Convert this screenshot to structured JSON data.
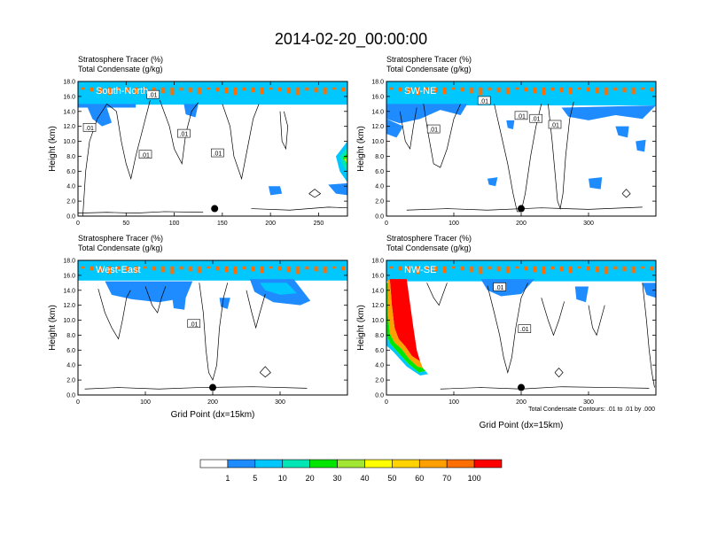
{
  "figure": {
    "title": "2014-02-20_00:00:00",
    "footnote": "Total Condensate Contours: .01 to .01 by .000"
  },
  "colorbar": {
    "labels": [
      "1",
      "5",
      "10",
      "20",
      "30",
      "40",
      "50",
      "60",
      "70",
      "100"
    ],
    "colors": [
      "#ffffff",
      "#1e8cff",
      "#00c8ff",
      "#00e6b4",
      "#00e600",
      "#a0e632",
      "#ffff00",
      "#ffd200",
      "#ffa000",
      "#ff6e00",
      "#ff0000"
    ]
  },
  "chart_data": [
    {
      "type": "heatmap",
      "title_line1": "Stratosphere Tracer   (%)",
      "title_line2": "Total Condensate   (g/kg)",
      "panel_label": "South-North",
      "ylabel": "Height (km)",
      "xlabel": "",
      "xlim": [
        0,
        280
      ],
      "ylim": [
        0,
        18
      ],
      "xticks": [
        "0",
        "50",
        "100",
        "150",
        "200",
        "250"
      ],
      "yticks": [
        "0.0",
        "2.0",
        "4.0",
        "6.0",
        "8.0",
        "10.0",
        "12.0",
        "14.0",
        "16.0",
        "18.0"
      ],
      "contour_labels": [
        {
          "text": ".01",
          "x": 78,
          "y": 16.2
        },
        {
          "text": ".01",
          "x": 12,
          "y": 11.8
        },
        {
          "text": ".01",
          "x": 110,
          "y": 11.0
        },
        {
          "text": ".01",
          "x": 70,
          "y": 8.2
        },
        {
          "text": ".01",
          "x": 145,
          "y": 8.4
        }
      ],
      "marker": {
        "x": 142,
        "y": 1.0
      }
    },
    {
      "type": "heatmap",
      "title_line1": "Stratosphere Tracer   (%)",
      "title_line2": "Total Condensate   (g/kg)",
      "panel_label": "SW-NE",
      "ylabel": "Height (km)",
      "xlabel": "",
      "xlim": [
        0,
        400
      ],
      "ylim": [
        0,
        18
      ],
      "xticks": [
        "0",
        "100",
        "200",
        "300"
      ],
      "yticks": [
        "0.0",
        "2.0",
        "4.0",
        "6.0",
        "8.0",
        "10.0",
        "12.0",
        "14.0",
        "16.0",
        "18.0"
      ],
      "contour_labels": [
        {
          "text": ".01",
          "x": 145,
          "y": 15.4
        },
        {
          "text": ".01",
          "x": 200,
          "y": 13.4
        },
        {
          "text": ".01",
          "x": 222,
          "y": 13.0
        },
        {
          "text": ".01",
          "x": 70,
          "y": 11.6
        },
        {
          "text": ".01",
          "x": 250,
          "y": 12.2
        }
      ],
      "marker": {
        "x": 200,
        "y": 1.0
      }
    },
    {
      "type": "heatmap",
      "title_line1": "Stratosphere Tracer   (%)",
      "title_line2": "Total Condensate   (g/kg)",
      "panel_label": "West-East",
      "ylabel": "Height (km)",
      "xlabel": "Grid Point (dx=15km)",
      "xlim": [
        0,
        400
      ],
      "ylim": [
        0,
        18
      ],
      "xticks": [
        "0",
        "100",
        "200",
        "300"
      ],
      "yticks": [
        "0.0",
        "2.0",
        "4.0",
        "6.0",
        "8.0",
        "10.0",
        "12.0",
        "14.0",
        "16.0",
        "18.0"
      ],
      "contour_labels": [
        {
          "text": ".01",
          "x": 172,
          "y": 9.5
        }
      ],
      "marker": {
        "x": 200,
        "y": 1.0
      }
    },
    {
      "type": "heatmap",
      "title_line1": "Stratosphere Tracer   (%)",
      "title_line2": "Total Condensate   (g/kg)",
      "panel_label": "NW-SE",
      "ylabel": "Height (km)",
      "xlabel": "Grid Point (dx=15km)",
      "xlim": [
        0,
        400
      ],
      "ylim": [
        0,
        18
      ],
      "xticks": [
        "0",
        "100",
        "200",
        "300"
      ],
      "yticks": [
        "0.0",
        "2.0",
        "4.0",
        "6.0",
        "8.0",
        "10.0",
        "12.0",
        "14.0",
        "16.0",
        "18.0"
      ],
      "contour_labels": [
        {
          "text": ".01",
          "x": 168,
          "y": 14.4
        },
        {
          "text": ".01",
          "x": 205,
          "y": 8.8
        }
      ],
      "marker": {
        "x": 200,
        "y": 1.0
      }
    }
  ]
}
